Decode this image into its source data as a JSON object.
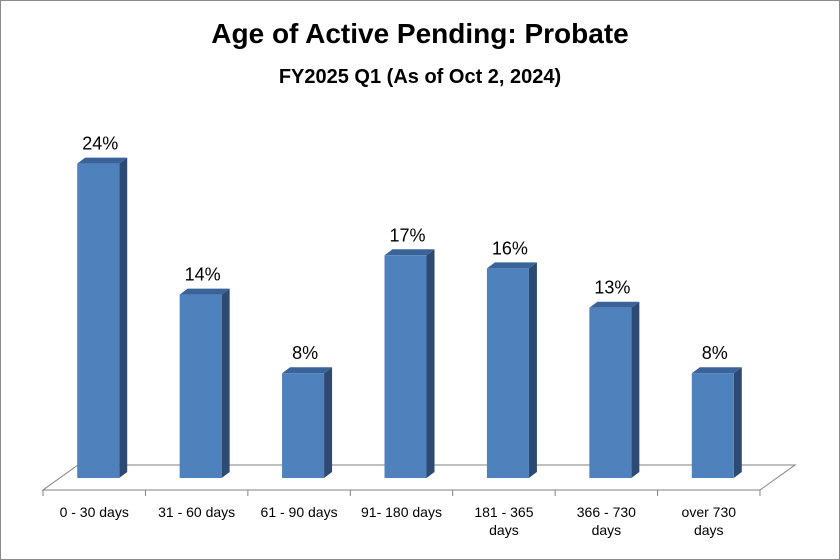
{
  "chart_data": {
    "type": "bar",
    "title": "Age of Active Pending: Probate",
    "subtitle": "FY2025 Q1 (As of Oct 2, 2024)",
    "categories": [
      [
        "0 - 30 days"
      ],
      [
        "31 - 60 days"
      ],
      [
        "61 - 90 days"
      ],
      [
        "91- 180 days"
      ],
      [
        "181 - 365",
        "days"
      ],
      [
        "366 - 730",
        "days"
      ],
      [
        "over 730",
        "days"
      ]
    ],
    "values": [
      24,
      14,
      8,
      17,
      16,
      13,
      8
    ],
    "data_labels": [
      "24%",
      "14%",
      "8%",
      "17%",
      "16%",
      "13%",
      "8%"
    ],
    "unit": "%",
    "ylim": [
      0,
      25
    ],
    "grid": false,
    "legend": "none",
    "style": "3d-column",
    "colors": {
      "bar_front": "#4f81bd",
      "bar_side": "#2e4a72",
      "bar_top": "#3a6399",
      "floor_line": "#808080"
    }
  }
}
